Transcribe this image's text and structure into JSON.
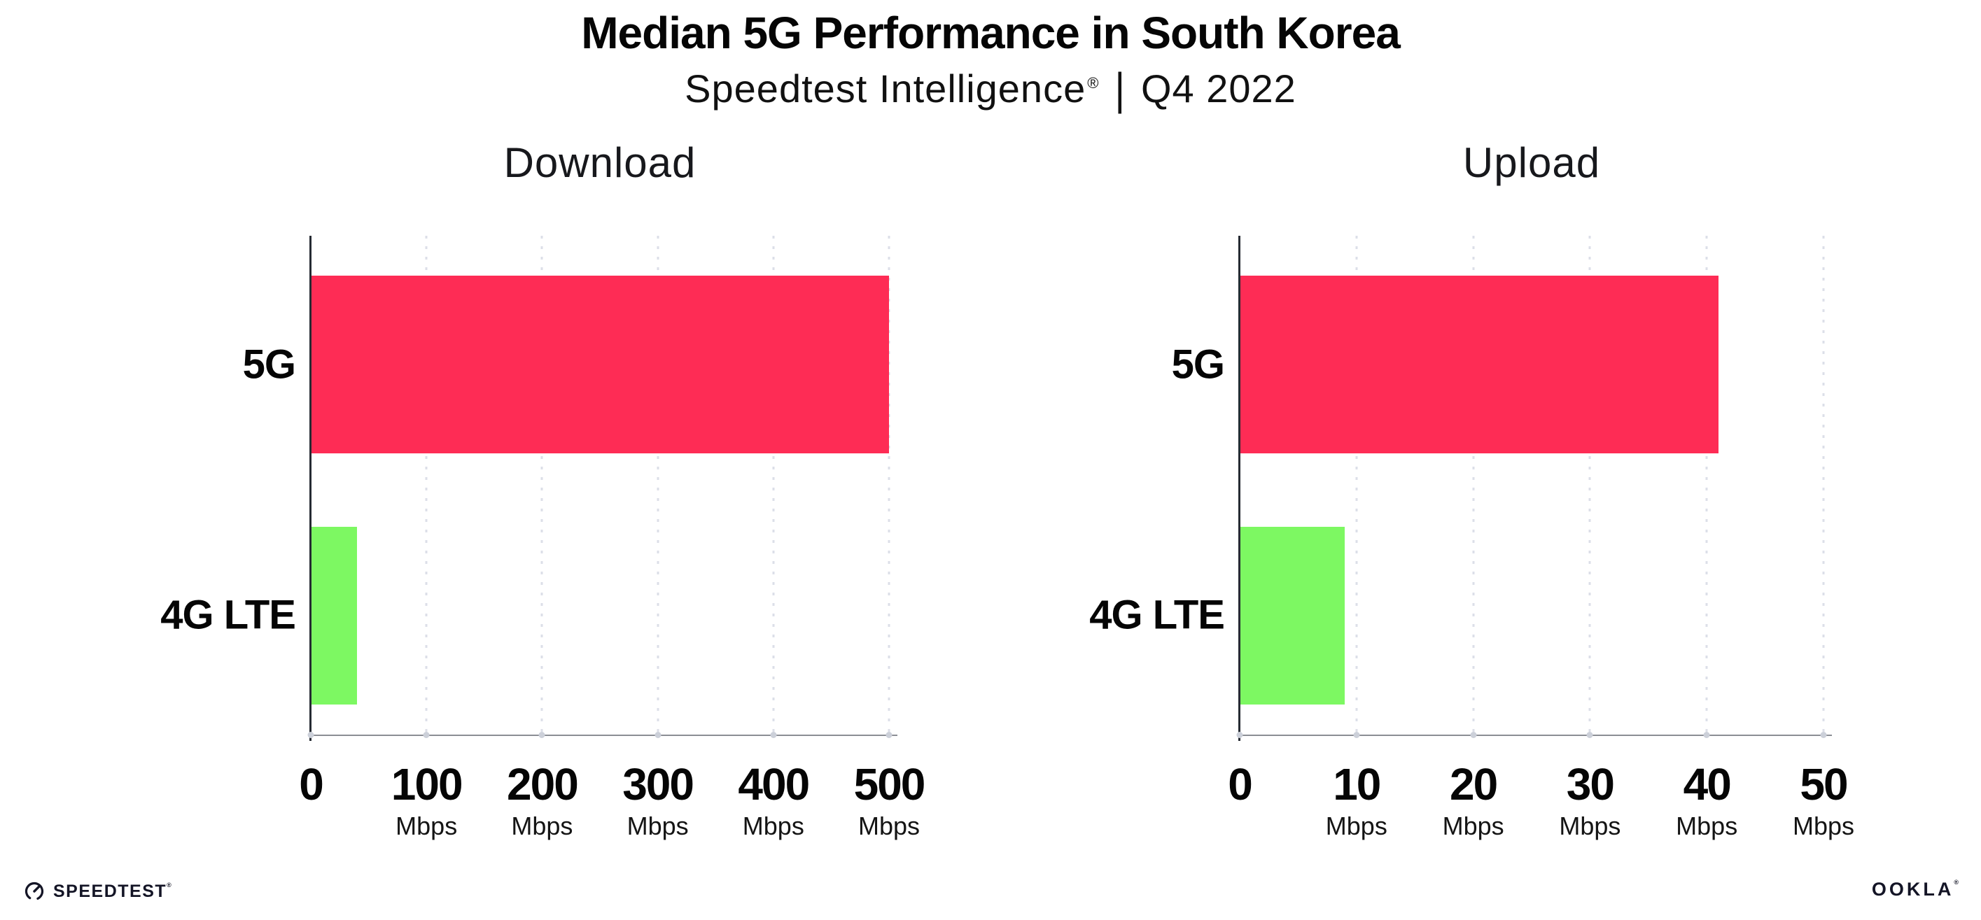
{
  "header": {
    "title": "Median 5G Performance in South Korea",
    "subtitle_product": "Speedtest Intelligence",
    "subtitle_reg": "®",
    "subtitle_sep": "|",
    "subtitle_period": "Q4 2022"
  },
  "chart_data": [
    {
      "type": "bar",
      "orientation": "horizontal",
      "title": "Download",
      "categories": [
        "5G",
        "4G LTE"
      ],
      "values": [
        500,
        40
      ],
      "unit": "Mbps",
      "xlim": [
        0,
        500
      ],
      "xticks": [
        0,
        100,
        200,
        300,
        400,
        500
      ],
      "grid": true,
      "bar_colors": [
        "#FE2C55",
        "#7DF862"
      ]
    },
    {
      "type": "bar",
      "orientation": "horizontal",
      "title": "Upload",
      "categories": [
        "5G",
        "4G LTE"
      ],
      "values": [
        41,
        9
      ],
      "unit": "Mbps",
      "xlim": [
        0,
        50
      ],
      "xticks": [
        0,
        10,
        20,
        30,
        40,
        50
      ],
      "grid": true,
      "bar_colors": [
        "#FE2C55",
        "#7DF862"
      ]
    }
  ],
  "footer": {
    "speedtest_logo": "SPEEDTEST",
    "speedtest_reg": "®",
    "ookla_logo": "OOKLA",
    "ookla_reg": "®"
  }
}
